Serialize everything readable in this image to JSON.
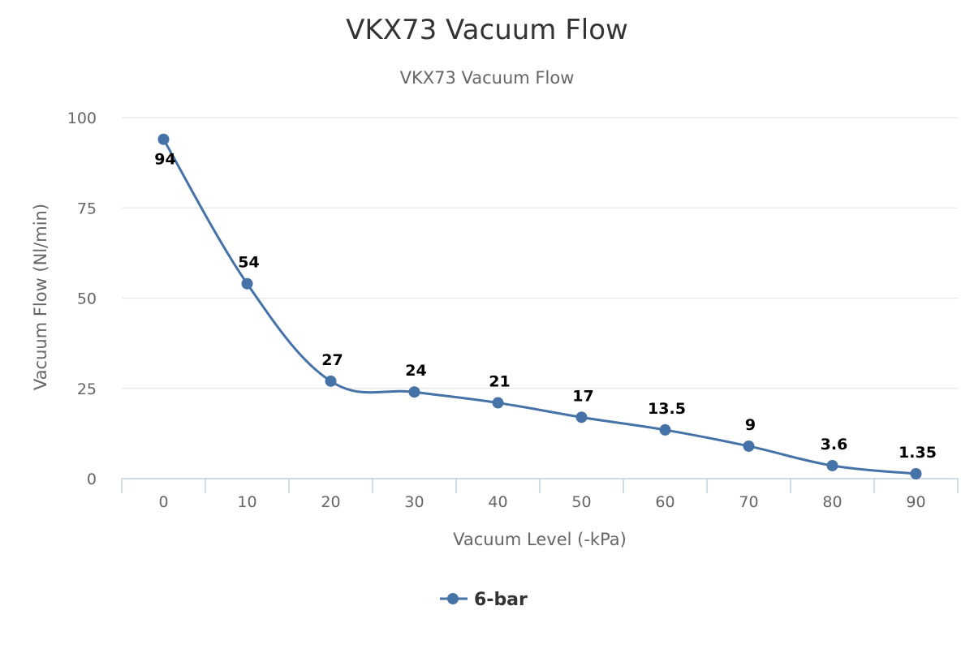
{
  "chart_data": {
    "type": "line",
    "title": "VKX73 Vacuum Flow",
    "subtitle": "VKX73 Vacuum Flow",
    "xlabel": "Vacuum Level (-kPa)",
    "ylabel": "Vacuum Flow (Nl/min)",
    "categories": [
      "0",
      "10",
      "20",
      "30",
      "40",
      "50",
      "60",
      "70",
      "80",
      "90"
    ],
    "ylim": [
      0,
      100
    ],
    "yticks": [
      0,
      25,
      50,
      75,
      100
    ],
    "grid": true,
    "legend_position": "bottom-center",
    "series": [
      {
        "name": "6-bar",
        "color": "#4572a7",
        "values": [
          94,
          54,
          27,
          24,
          21,
          17,
          13.5,
          9,
          3.6,
          1.35
        ],
        "data_labels": [
          "94",
          "54",
          "27",
          "24",
          "21",
          "17",
          "13.5",
          "9",
          "3.6",
          "1.35"
        ]
      }
    ]
  }
}
